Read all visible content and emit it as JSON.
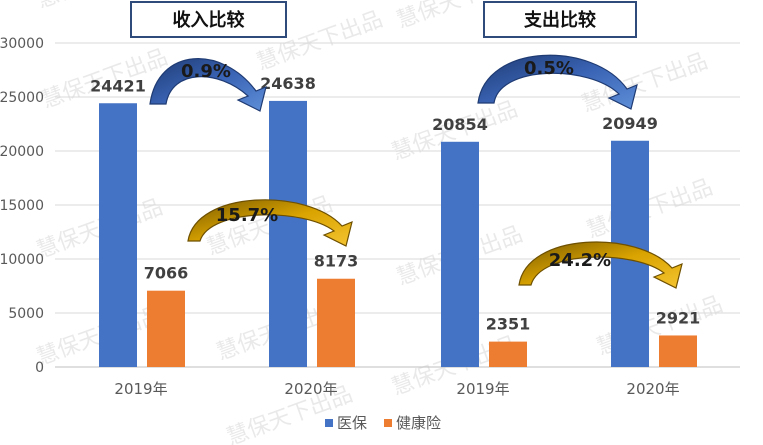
{
  "chart_data": {
    "type": "bar",
    "categories": [
      "2019年",
      "2020年",
      "2019年",
      "2020年"
    ],
    "series": [
      {
        "name": "医保",
        "color": "#4472C4",
        "values": [
          24421,
          24638,
          20854,
          20949
        ]
      },
      {
        "name": "健康险",
        "color": "#ED7D31",
        "values": [
          7066,
          8173,
          2351,
          2921
        ]
      }
    ],
    "ylim": [
      0,
      30000
    ],
    "yticks": [
      0,
      5000,
      10000,
      15000,
      20000,
      25000,
      30000
    ],
    "grid": true,
    "legend": "bottom",
    "groups": [
      {
        "title": "收入比较",
        "medical_growth": "0.9%",
        "health_growth": "15.7%"
      },
      {
        "title": "支出比较",
        "medical_growth": "0.5%",
        "health_growth": "24.2%"
      }
    ],
    "watermark": "慧保天下出品"
  }
}
